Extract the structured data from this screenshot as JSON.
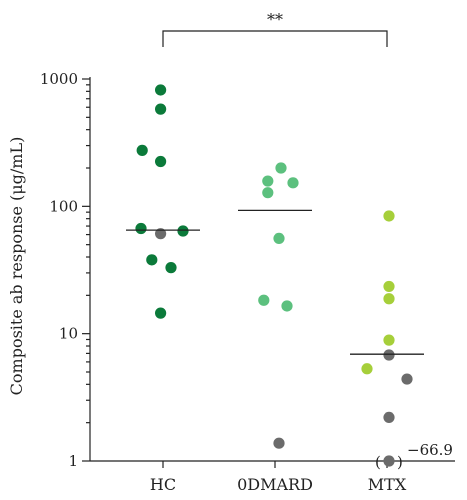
{
  "chart_data": {
    "type": "scatter",
    "title": "",
    "xlabel": "",
    "ylabel": "Composite ab response (μg/mL)",
    "yscale": "log",
    "ylim": [
      1,
      1000
    ],
    "yticks": [
      {
        "value": 1,
        "label": "1"
      },
      {
        "value": 10,
        "label": "10"
      },
      {
        "value": 100,
        "label": "100"
      },
      {
        "value": 1000,
        "label": "1000"
      }
    ],
    "categories": [
      "HC",
      "0DMARD",
      "MTX"
    ],
    "groups": [
      {
        "category": "HC",
        "median": 65,
        "points": [
          {
            "y": 820,
            "dx": -0.06,
            "color": "#0b7a3a"
          },
          {
            "y": 580,
            "dx": -0.06,
            "color": "#0b7a3a"
          },
          {
            "y": 275,
            "dx": -0.52,
            "color": "#0b7a3a"
          },
          {
            "y": 225,
            "dx": -0.06,
            "color": "#0b7a3a"
          },
          {
            "y": 67,
            "dx": -0.55,
            "color": "#0b7a3a"
          },
          {
            "y": 61,
            "dx": -0.06,
            "color": "#6b6b6b"
          },
          {
            "y": 64,
            "dx": 0.5,
            "color": "#0b7a3a"
          },
          {
            "y": 38,
            "dx": -0.28,
            "color": "#0b7a3a"
          },
          {
            "y": 33,
            "dx": 0.2,
            "color": "#0b7a3a"
          },
          {
            "y": 14.5,
            "dx": -0.06,
            "color": "#0b7a3a"
          }
        ]
      },
      {
        "category": "0DMARD",
        "median": 93,
        "points": [
          {
            "y": 200,
            "dx": 0.15,
            "color": "#5cc07e"
          },
          {
            "y": 158,
            "dx": -0.18,
            "color": "#5cc07e"
          },
          {
            "y": 153,
            "dx": 0.45,
            "color": "#5cc07e"
          },
          {
            "y": 128,
            "dx": -0.18,
            "color": "#5cc07e"
          },
          {
            "y": 56,
            "dx": 0.1,
            "color": "#5cc07e"
          },
          {
            "y": 18.3,
            "dx": -0.28,
            "color": "#5cc07e"
          },
          {
            "y": 16.5,
            "dx": 0.3,
            "color": "#5cc07e"
          },
          {
            "y": 1.38,
            "dx": 0.1,
            "color": "#6b6b6b"
          }
        ]
      },
      {
        "category": "MTX",
        "median": 6.9,
        "points": [
          {
            "y": 84,
            "dx": 0.05,
            "color": "#a6cf3a"
          },
          {
            "y": 23.5,
            "dx": 0.05,
            "color": "#a6cf3a"
          },
          {
            "y": 18.8,
            "dx": 0.05,
            "color": "#a6cf3a"
          },
          {
            "y": 8.9,
            "dx": 0.05,
            "color": "#a6cf3a"
          },
          {
            "y": 6.8,
            "dx": 0.05,
            "color": "#6b6b6b"
          },
          {
            "y": 5.3,
            "dx": -0.5,
            "color": "#a6cf3a"
          },
          {
            "y": 4.4,
            "dx": 0.5,
            "color": "#6b6b6b"
          },
          {
            "y": 2.2,
            "dx": 0.05,
            "color": "#6b6b6b"
          },
          {
            "y": 1.0,
            "dx": 0.05,
            "color": "#6b6b6b",
            "bracketed": true
          }
        ]
      }
    ],
    "annotations": [
      {
        "text": "**",
        "between": [
          "HC",
          "MTX"
        ]
      },
      {
        "text": "−66.9",
        "near": "MTX lowest point"
      }
    ]
  }
}
